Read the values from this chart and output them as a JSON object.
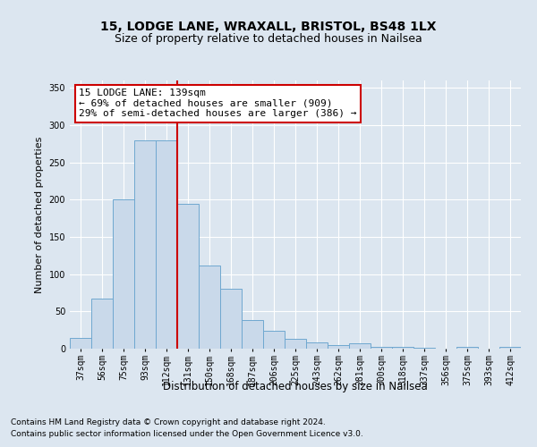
{
  "title1": "15, LODGE LANE, WRAXALL, BRISTOL, BS48 1LX",
  "title2": "Size of property relative to detached houses in Nailsea",
  "xlabel": "Distribution of detached houses by size in Nailsea",
  "ylabel": "Number of detached properties",
  "categories": [
    "37sqm",
    "56sqm",
    "75sqm",
    "93sqm",
    "112sqm",
    "131sqm",
    "150sqm",
    "168sqm",
    "187sqm",
    "206sqm",
    "225sqm",
    "243sqm",
    "262sqm",
    "281sqm",
    "300sqm",
    "318sqm",
    "337sqm",
    "356sqm",
    "375sqm",
    "393sqm",
    "412sqm"
  ],
  "values": [
    15,
    67,
    200,
    280,
    280,
    195,
    112,
    80,
    38,
    24,
    13,
    8,
    5,
    7,
    3,
    2,
    1,
    0,
    2,
    0,
    2
  ],
  "bar_color": "#c9d9ea",
  "bar_edge_color": "#6fa8d0",
  "highlight_line_index": 5,
  "highlight_line_color": "#cc0000",
  "annotation_line1": "15 LODGE LANE: 139sqm",
  "annotation_line2": "← 69% of detached houses are smaller (909)",
  "annotation_line3": "29% of semi-detached houses are larger (386) →",
  "annotation_box_color": "#ffffff",
  "annotation_box_edge_color": "#cc0000",
  "ylim": [
    0,
    360
  ],
  "yticks": [
    0,
    50,
    100,
    150,
    200,
    250,
    300,
    350
  ],
  "background_color": "#dce6f0",
  "plot_background_color": "#dce6f0",
  "grid_color": "#ffffff",
  "footer1": "Contains HM Land Registry data © Crown copyright and database right 2024.",
  "footer2": "Contains public sector information licensed under the Open Government Licence v3.0.",
  "title1_fontsize": 10,
  "title2_fontsize": 9,
  "xlabel_fontsize": 8.5,
  "ylabel_fontsize": 8,
  "tick_fontsize": 7,
  "annotation_fontsize": 8,
  "footer_fontsize": 6.5
}
